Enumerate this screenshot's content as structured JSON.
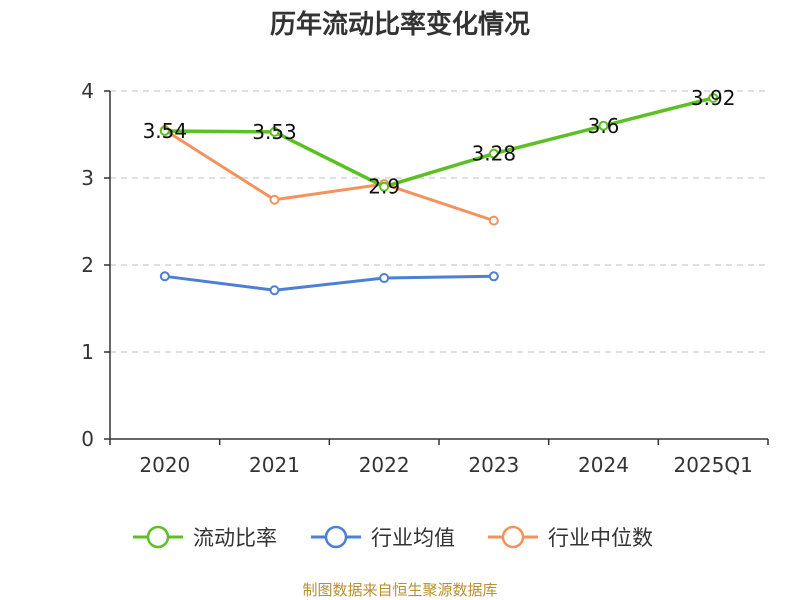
{
  "chart_data": {
    "type": "line",
    "title": "历年流动比率变化情况",
    "categories": [
      "2020",
      "2021",
      "2022",
      "2023",
      "2024",
      "2025Q1"
    ],
    "ylim": [
      0,
      4
    ],
    "yticks": [
      "0",
      "1",
      "2",
      "3",
      "4"
    ],
    "grid": true,
    "legend_position": "bottom",
    "series": [
      {
        "name": "流动比率",
        "color": "#5cc025",
        "values": [
          3.54,
          3.53,
          2.9,
          3.28,
          3.6,
          3.92
        ],
        "labels": [
          "3.54",
          "3.53",
          "2.9",
          "3.28",
          "3.6",
          "3.92"
        ]
      },
      {
        "name": "行业均值",
        "color": "#4d7fd6",
        "values": [
          1.87,
          1.71,
          1.85,
          1.87,
          null,
          null
        ]
      },
      {
        "name": "行业中位数",
        "color": "#f5925c",
        "values": [
          3.55,
          2.75,
          2.93,
          2.51,
          null,
          null
        ]
      }
    ]
  },
  "source": "制图数据来自恒生聚源数据库"
}
